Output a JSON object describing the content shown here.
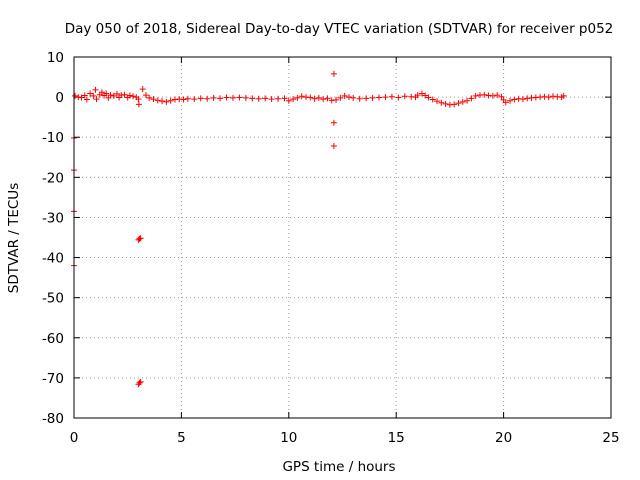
{
  "chart_data": {
    "type": "scatter",
    "title": "Day 050 of 2018, Sidereal Day-to-day VTEC variation (SDTVAR) for receiver p052",
    "xlabel": "GPS time / hours",
    "ylabel": "SDTVAR / TECUs",
    "xlim": [
      0,
      25
    ],
    "ylim": [
      -80,
      10
    ],
    "xticks": [
      0,
      5,
      10,
      15,
      20,
      25
    ],
    "yticks": [
      10,
      0,
      -10,
      -20,
      -30,
      -40,
      -50,
      -60,
      -70,
      -80
    ],
    "grid": true,
    "marker": "+",
    "series": [
      {
        "name": "SDTVAR",
        "color": "#ff0000",
        "points": [
          [
            0.0,
            -10.2
          ],
          [
            0.0,
            -18.2
          ],
          [
            0.0,
            -28.5
          ],
          [
            0.0,
            -42.0
          ],
          [
            0.05,
            0.3
          ],
          [
            0.2,
            0.0
          ],
          [
            0.35,
            -0.1
          ],
          [
            0.5,
            0.4
          ],
          [
            0.6,
            -0.6
          ],
          [
            0.75,
            0.9
          ],
          [
            0.9,
            0.3
          ],
          [
            1.0,
            1.8
          ],
          [
            1.05,
            -0.5
          ],
          [
            1.2,
            0.6
          ],
          [
            1.3,
            1.2
          ],
          [
            1.4,
            0.4
          ],
          [
            1.5,
            0.9
          ],
          [
            1.6,
            -0.2
          ],
          [
            1.7,
            0.5
          ],
          [
            1.85,
            0.3
          ],
          [
            2.0,
            0.8
          ],
          [
            2.1,
            -0.1
          ],
          [
            2.2,
            0.5
          ],
          [
            2.35,
            0.6
          ],
          [
            2.5,
            -0.1
          ],
          [
            2.6,
            0.4
          ],
          [
            2.75,
            0.2
          ],
          [
            2.9,
            0.0
          ],
          [
            3.0,
            -0.5
          ],
          [
            3.02,
            -1.8
          ],
          [
            3.05,
            -35.3
          ],
          [
            3.0,
            -35.6
          ],
          [
            3.1,
            -35.2
          ],
          [
            3.05,
            -71.2
          ],
          [
            3.0,
            -71.6
          ],
          [
            3.1,
            -71.0
          ],
          [
            3.2,
            2.0
          ],
          [
            3.35,
            0.5
          ],
          [
            3.5,
            -0.2
          ],
          [
            3.7,
            -0.5
          ],
          [
            3.9,
            -0.8
          ],
          [
            4.1,
            -1.0
          ],
          [
            4.3,
            -1.2
          ],
          [
            4.5,
            -0.9
          ],
          [
            4.7,
            -0.6
          ],
          [
            4.9,
            -0.5
          ],
          [
            5.1,
            -0.6
          ],
          [
            5.3,
            -0.4
          ],
          [
            5.6,
            -0.5
          ],
          [
            5.9,
            -0.3
          ],
          [
            6.2,
            -0.4
          ],
          [
            6.5,
            -0.2
          ],
          [
            6.8,
            -0.3
          ],
          [
            7.1,
            -0.1
          ],
          [
            7.4,
            -0.2
          ],
          [
            7.7,
            -0.1
          ],
          [
            8.0,
            -0.2
          ],
          [
            8.3,
            -0.3
          ],
          [
            8.6,
            -0.4
          ],
          [
            8.9,
            -0.3
          ],
          [
            9.2,
            -0.5
          ],
          [
            9.5,
            -0.4
          ],
          [
            9.8,
            -0.3
          ],
          [
            10.0,
            -0.9
          ],
          [
            10.2,
            -0.5
          ],
          [
            10.4,
            -0.2
          ],
          [
            10.6,
            0.2
          ],
          [
            10.8,
            0.0
          ],
          [
            11.0,
            -0.1
          ],
          [
            11.2,
            -0.4
          ],
          [
            11.4,
            -0.2
          ],
          [
            11.6,
            -0.5
          ],
          [
            11.8,
            -0.3
          ],
          [
            12.0,
            -0.8
          ],
          [
            12.1,
            5.8
          ],
          [
            12.1,
            -6.4
          ],
          [
            12.1,
            -12.2
          ],
          [
            12.2,
            -0.7
          ],
          [
            12.4,
            -0.2
          ],
          [
            12.6,
            0.3
          ],
          [
            12.8,
            0.0
          ],
          [
            13.0,
            -0.2
          ],
          [
            13.3,
            -0.4
          ],
          [
            13.6,
            -0.3
          ],
          [
            13.9,
            -0.2
          ],
          [
            14.2,
            -0.1
          ],
          [
            14.5,
            0.0
          ],
          [
            14.8,
            0.1
          ],
          [
            15.1,
            -0.1
          ],
          [
            15.4,
            0.2
          ],
          [
            15.7,
            0.1
          ],
          [
            15.9,
            0.0
          ],
          [
            16.0,
            0.5
          ],
          [
            16.2,
            0.9
          ],
          [
            16.35,
            0.4
          ],
          [
            16.5,
            -0.1
          ],
          [
            16.7,
            -0.6
          ],
          [
            16.9,
            -1.0
          ],
          [
            17.1,
            -1.4
          ],
          [
            17.3,
            -1.7
          ],
          [
            17.5,
            -1.9
          ],
          [
            17.7,
            -1.8
          ],
          [
            17.9,
            -1.5
          ],
          [
            18.1,
            -1.2
          ],
          [
            18.3,
            -0.9
          ],
          [
            18.5,
            -0.3
          ],
          [
            18.7,
            0.3
          ],
          [
            18.9,
            0.5
          ],
          [
            19.1,
            0.6
          ],
          [
            19.3,
            0.4
          ],
          [
            19.5,
            0.3
          ],
          [
            19.7,
            0.5
          ],
          [
            19.9,
            0.1
          ],
          [
            20.0,
            -0.7
          ],
          [
            20.1,
            -1.3
          ],
          [
            20.3,
            -0.9
          ],
          [
            20.5,
            -0.6
          ],
          [
            20.7,
            -0.4
          ],
          [
            20.9,
            -0.5
          ],
          [
            21.1,
            -0.3
          ],
          [
            21.3,
            -0.2
          ],
          [
            21.5,
            -0.1
          ],
          [
            21.7,
            0.0
          ],
          [
            21.9,
            0.1
          ],
          [
            22.1,
            0.0
          ],
          [
            22.3,
            0.2
          ],
          [
            22.5,
            0.1
          ],
          [
            22.7,
            0.0
          ],
          [
            22.8,
            0.3
          ]
        ]
      }
    ]
  }
}
